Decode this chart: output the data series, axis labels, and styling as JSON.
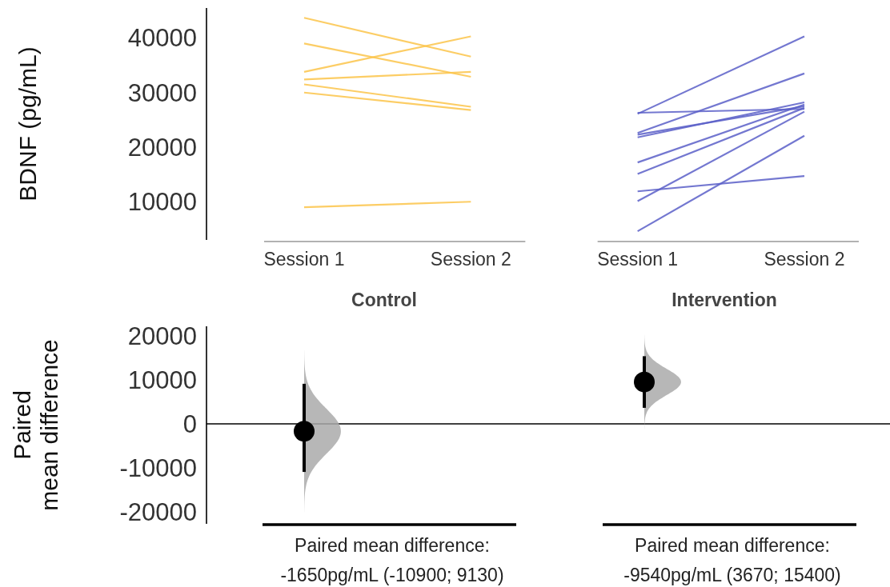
{
  "chart_data": [
    {
      "type": "line",
      "ylabel": "BDNF (pg/mL)",
      "categories": [
        "Session 1",
        "Session 2",
        "Session 1",
        "Session 2"
      ],
      "ylim": [
        3000,
        45500
      ],
      "yticks": [
        10000,
        20000,
        30000,
        40000
      ],
      "grid": false,
      "marker": "none",
      "series": [
        {
          "color": "#fcc44a",
          "values": [
            43700,
            36600,
            null,
            null
          ]
        },
        {
          "color": "#fcc44a",
          "values": [
            39000,
            32900,
            null,
            null
          ]
        },
        {
          "color": "#fcc44a",
          "values": [
            33800,
            40300,
            null,
            null
          ]
        },
        {
          "color": "#fcc44a",
          "values": [
            32400,
            33800,
            null,
            null
          ]
        },
        {
          "color": "#fcc44a",
          "values": [
            31500,
            27400,
            null,
            null
          ]
        },
        {
          "color": "#fcc44a",
          "values": [
            30000,
            26800,
            null,
            null
          ]
        },
        {
          "color": "#fcc44a",
          "values": [
            9000,
            10000,
            null,
            null
          ]
        },
        {
          "color": "#5a5fc8",
          "values": [
            null,
            null,
            26300,
            27000
          ]
        },
        {
          "color": "#5a5fc8",
          "values": [
            null,
            null,
            26100,
            40300
          ]
        },
        {
          "color": "#5a5fc8",
          "values": [
            null,
            null,
            22600,
            33500
          ]
        },
        {
          "color": "#5a5fc8",
          "values": [
            null,
            null,
            22300,
            27500
          ]
        },
        {
          "color": "#5a5fc8",
          "values": [
            null,
            null,
            21800,
            28200
          ]
        },
        {
          "color": "#5a5fc8",
          "values": [
            null,
            null,
            17200,
            27800
          ]
        },
        {
          "color": "#5a5fc8",
          "values": [
            null,
            null,
            15100,
            27200
          ]
        },
        {
          "color": "#5a5fc8",
          "values": [
            null,
            null,
            11900,
            14700
          ]
        },
        {
          "color": "#5a5fc8",
          "values": [
            null,
            null,
            10100,
            26500
          ]
        },
        {
          "color": "#5a5fc8",
          "values": [
            null,
            null,
            4600,
            22100
          ]
        }
      ]
    },
    {
      "type": "scatter",
      "ylabel": "Paired\nmean difference",
      "categories": [
        "Control",
        "Intervention"
      ],
      "values": [
        -1650,
        9540
      ],
      "errors": [
        [
          -10900,
          9130
        ],
        [
          3670,
          15400
        ]
      ],
      "color": "#000000",
      "marker": "circle",
      "ylim": [
        -22700,
        22200
      ],
      "yticks": [
        -20000,
        -10000,
        0,
        10000,
        20000
      ],
      "ref_lines": [
        {
          "axis": "y",
          "value": 0,
          "color": "#000000"
        }
      ],
      "annotations": [
        "Paired mean difference:\n-1650pg/mL (-10900; 9130)",
        "Paired mean difference:\n-9540pg/mL (3670; 15400)"
      ]
    }
  ]
}
